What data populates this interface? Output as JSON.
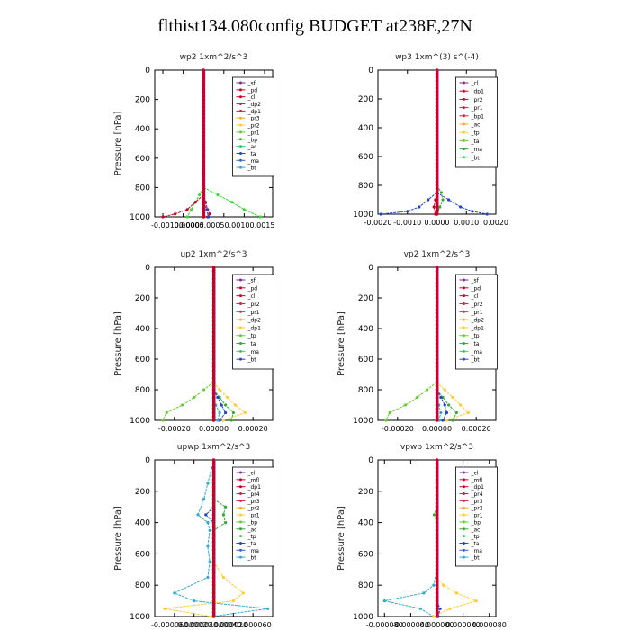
{
  "figure": {
    "title": "flthist134.080config  BUDGET at238E,27N"
  },
  "chart_data": [
    {
      "type": "line",
      "title": "wp2   1xm^2/s^3",
      "ylabel": "Pressure [hPa]",
      "xlim": [
        -0.0012,
        0.0017
      ],
      "ylim": [
        1000,
        0
      ],
      "xticks": [
        -0.001,
        -0.0005,
        0.0,
        0.0005,
        0.001,
        0.0015
      ],
      "xtick_labels": [
        "-0.00100.0005",
        "0.00000.00050.00100.0015",
        "",
        "",
        "",
        ""
      ],
      "yticks": [
        0,
        200,
        400,
        600,
        800,
        1000
      ],
      "legend": [
        "_sf",
        "_pd",
        "_cl",
        "_dp2",
        "_dp1",
        "_pr3",
        "_pr2",
        "_pr1",
        "_bp",
        "_ac",
        "_ta",
        "_ma",
        "_bt"
      ],
      "series": [
        {
          "name": "_bp",
          "color": "#33dd33",
          "y": [
            800,
            850,
            900,
            950,
            1000
          ],
          "x": [
            0.0,
            0.00035,
            0.0007,
            0.001,
            0.0014
          ]
        },
        {
          "name": "_bp",
          "color": "#33dd33",
          "y": [
            800,
            850,
            900,
            950,
            1000
          ],
          "x": [
            0.0,
            -0.0001,
            -0.0002,
            -0.0003,
            -0.0004
          ]
        },
        {
          "name": "_cl",
          "color": "#cc0022",
          "y": [
            850,
            900,
            950,
            980,
            1000
          ],
          "x": [
            0.0,
            -0.0002,
            -0.0004,
            -0.0007,
            -0.001
          ]
        },
        {
          "name": "_pd",
          "color": "#cc0022",
          "y": [
            850,
            900,
            950,
            980,
            1000
          ],
          "x": [
            0.0,
            5e-05,
            0.0001,
            0.00015,
            0.0001
          ]
        },
        {
          "name": "_ta",
          "color": "#2244cc",
          "y": [
            900,
            950,
            1000
          ],
          "x": [
            0.0,
            8e-05,
            0.00012
          ]
        }
      ]
    },
    {
      "type": "line",
      "title": "wp3   1xm^(3) s^(-4)",
      "ylabel": "",
      "xlim": [
        -0.002,
        0.002
      ],
      "ylim": [
        1000,
        0
      ],
      "xticks": [
        -0.002,
        -0.001,
        0.0,
        0.001,
        0.002
      ],
      "xtick_labels": [
        "-0.0020",
        "-0.0010",
        "0.0000",
        "0.0010",
        "0.0020"
      ],
      "yticks": [
        0,
        200,
        400,
        600,
        800,
        1000
      ],
      "legend": [
        "_cl",
        "_dp1",
        "_pr2",
        "_pr1",
        "_bp1",
        "_ac",
        "_tp",
        "_ta",
        "_ma",
        "_bt"
      ],
      "series": [
        {
          "name": "_ta",
          "color": "#2244cc",
          "y": [
            850,
            900,
            950,
            980,
            1000
          ],
          "x": [
            0.0,
            -0.0003,
            -0.0006,
            -0.001,
            -0.0019
          ]
        },
        {
          "name": "_tp",
          "color": "#2244cc",
          "y": [
            850,
            900,
            950,
            980,
            1000
          ],
          "x": [
            0.0,
            0.0004,
            0.0008,
            0.0012,
            0.0017
          ]
        },
        {
          "name": "_ac",
          "color": "#33aa33",
          "y": [
            800,
            850,
            900,
            950,
            1000
          ],
          "x": [
            0.0,
            0.00015,
            0.0002,
            0.0001,
            0.0
          ]
        },
        {
          "name": "_cl",
          "color": "#cc0022",
          "y": [
            850,
            900,
            950,
            1000
          ],
          "x": [
            0.0,
            -5e-05,
            -0.0001,
            -5e-05
          ]
        }
      ]
    },
    {
      "type": "line",
      "title": "up2   1xm^2/s^3",
      "ylabel": "Pressure [hPa]",
      "xlim": [
        -0.0003,
        0.0003
      ],
      "ylim": [
        1000,
        0
      ],
      "xticks": [
        -0.0002,
        0.0,
        0.0002
      ],
      "xtick_labels": [
        "-0.00020",
        "0.00000",
        "0.00020"
      ],
      "yticks": [
        0,
        200,
        400,
        600,
        800,
        1000
      ],
      "legend": [
        "_sf",
        "_pd",
        "_cl",
        "_pr2",
        "_pr1",
        "_dp2",
        "_dp1",
        "_tp",
        "_ta",
        "_ma",
        "_bt"
      ],
      "series": [
        {
          "name": "_pr2",
          "color": "#ffcc33",
          "y": [
            750,
            800,
            850,
            900,
            950,
            1000
          ],
          "x": [
            0.0,
            3e-05,
            7e-05,
            0.00011,
            0.00016,
            5e-05
          ]
        },
        {
          "name": "_pr1",
          "color": "#66cc33",
          "y": [
            750,
            800,
            850,
            900,
            950,
            1000
          ],
          "x": [
            0.0,
            -5e-05,
            -0.0001,
            -0.00016,
            -0.00024,
            -0.00026
          ]
        },
        {
          "name": "_dp2",
          "color": "#33aa33",
          "y": [
            800,
            850,
            900,
            950,
            1000
          ],
          "x": [
            0.0,
            3e-05,
            6e-05,
            0.0001,
            9e-05
          ]
        },
        {
          "name": "_tp",
          "color": "#2244cc",
          "y": [
            800,
            850,
            900,
            950,
            1000
          ],
          "x": [
            0.0,
            2e-05,
            4e-05,
            6e-05,
            3e-05
          ]
        },
        {
          "name": "_ma",
          "color": "#33aacc",
          "y": [
            850,
            900,
            950,
            1000
          ],
          "x": [
            0.0,
            1e-05,
            3e-05,
            2e-05
          ]
        }
      ]
    },
    {
      "type": "line",
      "title": "vp2   1xm^2/s^3",
      "ylabel": "Pressure [hPa]",
      "xlim": [
        -0.0003,
        0.0003
      ],
      "ylim": [
        1000,
        0
      ],
      "xticks": [
        -0.0002,
        0.0,
        0.0002
      ],
      "xtick_labels": [
        "-0.00020",
        "0.00000",
        "0.00020"
      ],
      "yticks": [
        0,
        200,
        400,
        600,
        800,
        1000
      ],
      "legend": [
        "_sf",
        "_pd",
        "_cl",
        "_pr2",
        "_pr1",
        "_dp2",
        "_dp1",
        "_tp",
        "_ta",
        "_ma",
        "_bt"
      ],
      "series": [
        {
          "name": "_pr2",
          "color": "#ffcc33",
          "y": [
            750,
            800,
            850,
            900,
            950,
            1000
          ],
          "x": [
            0.0,
            4e-05,
            8e-05,
            0.00012,
            0.00016,
            5e-05
          ]
        },
        {
          "name": "_pr1",
          "color": "#66cc33",
          "y": [
            750,
            800,
            850,
            900,
            950,
            1000
          ],
          "x": [
            0.0,
            -5e-05,
            -0.0001,
            -0.00016,
            -0.00024,
            -0.00026
          ]
        },
        {
          "name": "_dp2",
          "color": "#33aa33",
          "y": [
            800,
            850,
            900,
            950,
            1000
          ],
          "x": [
            0.0,
            3e-05,
            6e-05,
            0.0001,
            8e-05
          ]
        },
        {
          "name": "_tp",
          "color": "#2244cc",
          "y": [
            800,
            850,
            900,
            950,
            1000
          ],
          "x": [
            0.0,
            2e-05,
            4e-05,
            5e-05,
            3e-05
          ]
        },
        {
          "name": "_ma",
          "color": "#33aacc",
          "y": [
            850,
            900,
            950,
            1000
          ],
          "x": [
            0.0,
            1e-05,
            2e-05,
            1e-05
          ]
        }
      ]
    },
    {
      "type": "line",
      "title": "upwp   1xm^2/s^3",
      "ylabel": "Pressure [hPa]",
      "xlim": [
        -6e-05,
        6e-05
      ],
      "ylim": [
        1000,
        0
      ],
      "xticks": [
        -6e-05,
        -4e-05,
        -2e-05,
        0.0,
        2e-05,
        4e-05,
        6e-05
      ],
      "xtick_labels": [
        "-0.000060.000040.000020",
        "0.000020.000040.000060",
        "",
        "",
        "",
        "",
        ""
      ],
      "yticks": [
        0,
        200,
        400,
        600,
        800,
        1000
      ],
      "legend": [
        "_cl",
        "_mfl",
        "_dp1",
        "_pr4",
        "_pr3",
        "_pr2",
        "_pr1",
        "_bp",
        "_ac",
        "_tp",
        "_ta",
        "_ma",
        "_bt"
      ],
      "series": [
        {
          "name": "_ma",
          "color": "#33aacc",
          "y": [
            50,
            150,
            250,
            350,
            400,
            450,
            550,
            650,
            750,
            850,
            900,
            950,
            1000
          ],
          "x": [
            -2e-06,
            -6e-06,
            -1e-05,
            -1.6e-05,
            -6e-06,
            -4e-06,
            -6e-06,
            -4e-06,
            -6e-06,
            -4e-05,
            -2e-05,
            5.5e-05,
            -2e-06
          ]
        },
        {
          "name": "_pr2",
          "color": "#ffcc33",
          "y": [
            650,
            750,
            850,
            900,
            950,
            1000
          ],
          "x": [
            0.0,
            1e-05,
            3e-05,
            2e-05,
            -5e-05,
            -2e-06
          ]
        },
        {
          "name": "_ac",
          "color": "#33aa33",
          "y": [
            250,
            300,
            350,
            400,
            450
          ],
          "x": [
            0.0,
            1.2e-05,
            1e-05,
            1.2e-05,
            0.0
          ]
        },
        {
          "name": "_tp",
          "color": "#2244cc",
          "y": [
            300,
            350,
            400
          ],
          "x": [
            0.0,
            -8e-06,
            0.0
          ]
        }
      ]
    },
    {
      "type": "line",
      "title": "vpwp   1xm^2/s^3",
      "ylabel": "Pressure [hPa]",
      "xlim": [
        -9e-05,
        9e-05
      ],
      "ylim": [
        1000,
        0
      ],
      "xticks": [
        -8e-05,
        -4e-05,
        0.0,
        4e-05,
        8e-05
      ],
      "xtick_labels": [
        "-0.000080",
        "-0.000040",
        "0.000000",
        "0.000040",
        "0.000080"
      ],
      "yticks": [
        0,
        200,
        400,
        600,
        800,
        1000
      ],
      "legend": [
        "_cl",
        "_mfl",
        "_dp1",
        "_pr4",
        "_pr3",
        "_pr2",
        "_pr1",
        "_bp",
        "_ac",
        "_tp",
        "_ta",
        "_ma",
        "_bt"
      ],
      "series": [
        {
          "name": "_ma",
          "color": "#33aacc",
          "y": [
            700,
            800,
            850,
            900,
            950,
            1000
          ],
          "x": [
            0.0,
            -5e-06,
            -2e-05,
            -8e-05,
            -2.5e-05,
            -5e-06
          ]
        },
        {
          "name": "_pr2",
          "color": "#ffcc33",
          "y": [
            750,
            800,
            850,
            900,
            950,
            1000
          ],
          "x": [
            0.0,
            1e-05,
            3e-05,
            6e-05,
            2e-05,
            -5e-06
          ]
        },
        {
          "name": "_ac",
          "color": "#33aa33",
          "y": [
            300,
            350,
            400
          ],
          "x": [
            0.0,
            -4e-06,
            0.0
          ]
        },
        {
          "name": "_tp",
          "color": "#2244cc",
          "y": [
            900,
            950,
            1000
          ],
          "x": [
            0.0,
            5e-06,
            2e-06
          ]
        }
      ]
    }
  ]
}
